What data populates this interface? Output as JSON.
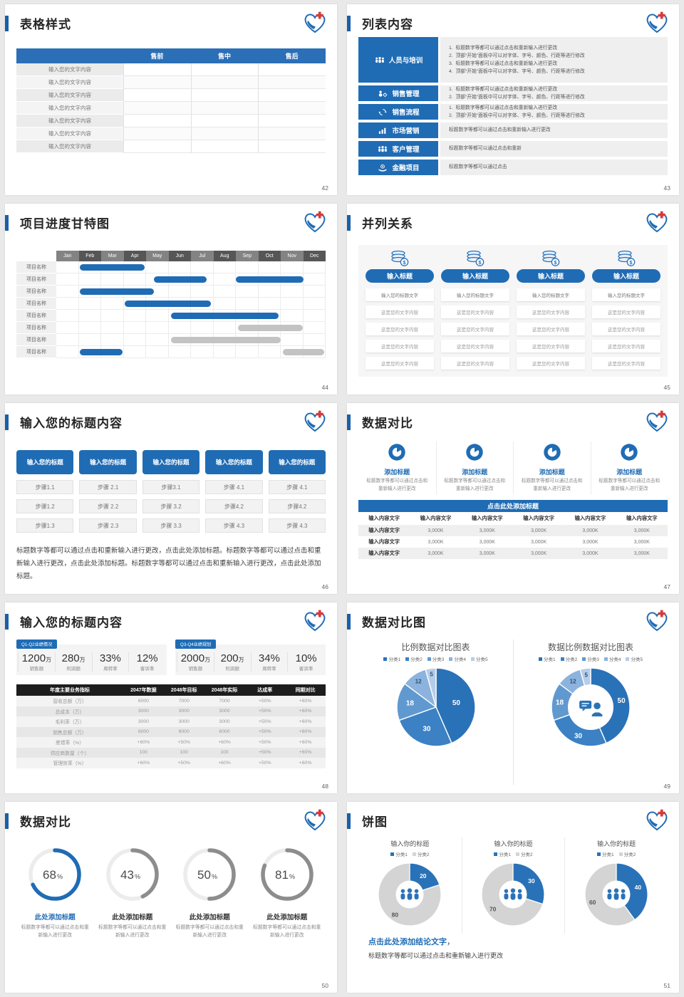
{
  "colors": {
    "primary": "#1f6cb5",
    "accent_bar": "#1a5fa8",
    "table_header_dark": "#1d1d1d",
    "gantt_bar_blue": "#1f6cb5",
    "gantt_bar_gray": "#c3c3c3",
    "ring_gray": "#8d8d8d",
    "donut_gray": "#d4d4d4",
    "pie_palette": [
      "#2a72b8",
      "#3b81c4",
      "#6099cf",
      "#8bb3dd",
      "#b5ccea"
    ]
  },
  "slides": {
    "s42": {
      "page": "42",
      "title": "表格样式",
      "table": {
        "headers": [
          "",
          "售前",
          "售中",
          "售后"
        ],
        "rows": [
          "输入您的文字内容",
          "输入您的文字内容",
          "输入您的文字内容",
          "输入您的文字内容",
          "输入您的文字内容",
          "输入您的文字内容",
          "输入您的文字内容"
        ]
      }
    },
    "s43": {
      "page": "43",
      "title": "列表内容",
      "rows": [
        {
          "label": "人员与培训",
          "icon": "people-training-icon",
          "numbered": true,
          "items": [
            "标题数字等都可以通过点击和重新输入进行更改",
            "顶部“开始”面板中可以对字体、字号、颜色、行距等进行修改",
            "标题数字等都可以通过点击和重新输入进行更改",
            "顶部“开始”面板中可以对字体、字号、颜色、行距等进行修改"
          ]
        },
        {
          "label": "销售管理",
          "icon": "sales-management-icon",
          "numbered": true,
          "items": [
            "标题数字等都可以通过点击和重新输入进行更改",
            "顶部“开始”面板中可以对字体、字号、颜色、行距等进行修改"
          ]
        },
        {
          "label": "销售流程",
          "icon": "sales-process-icon",
          "numbered": true,
          "items": [
            "标题数字等都可以通过点击和重新输入进行更改",
            "顶部“开始”面板中可以对字体、字号、颜色、行距等进行修改"
          ]
        },
        {
          "label": "市场营销",
          "icon": "marketing-icon",
          "numbered": false,
          "items": [
            "标题数字等都可以通过点击和重新输入进行更改"
          ]
        },
        {
          "label": "客户管理",
          "icon": "customer-management-icon",
          "numbered": false,
          "items": [
            "标题数字等都可以通过点击和重新"
          ]
        },
        {
          "label": "金融项目",
          "icon": "finance-project-icon",
          "numbered": false,
          "items": [
            "标题数字等都可以通过点击"
          ]
        }
      ]
    },
    "s44": {
      "page": "44",
      "title": "项目进度甘特图"
    },
    "s45": {
      "page": "45",
      "title": "并列关系",
      "columns": [
        {
          "title": "输入标题",
          "rows": [
            "输入您的标题文字",
            "这是您的文字内容",
            "这是您的文字内容",
            "这是您的文字内容",
            "这是您的文字内容"
          ]
        },
        {
          "title": "输入标题",
          "rows": [
            "输入您的标题文字",
            "这是您的文字内容",
            "这是您的文字内容",
            "这是您的文字内容",
            "这是您的文字内容"
          ]
        },
        {
          "title": "输入标题",
          "rows": [
            "输入您的标题文字",
            "这是您的文字内容",
            "这是您的文字内容",
            "这是您的文字内容",
            "这是您的文字内容"
          ]
        },
        {
          "title": "输入标题",
          "rows": [
            "输入您的标题文字",
            "这是您的文字内容",
            "这是您的文字内容",
            "这是您的文字内容",
            "这是您的文字内容"
          ]
        }
      ]
    },
    "s46": {
      "page": "46",
      "title": "输入您的标题内容",
      "columns": [
        {
          "header": "输入您的标题",
          "steps": [
            "步骤1.1",
            "步骤1.2",
            "步骤1.3"
          ]
        },
        {
          "header": "输入您的标题",
          "steps": [
            "步骤 2.1",
            "步骤 2.2",
            "步骤 2.3"
          ]
        },
        {
          "header": "输入您的标题",
          "steps": [
            "步骤3.1",
            "步骤 3.2",
            "步骤 3.3"
          ]
        },
        {
          "header": "输入您的标题",
          "steps": [
            "步骤 4.1",
            "步骤4.2",
            "步骤 4.3"
          ]
        },
        {
          "header": "输入您的标题",
          "steps": [
            "步骤 4.1",
            "步骤4.2",
            "步骤 4.3"
          ]
        }
      ],
      "paragraph": "标题数字等都可以通过点击和重新输入进行更改，点击此处添加标题。标题数字等都可以通过点击和重新输入进行更改，点击此处添加标题。标题数字等都可以通过点击和重新输入进行更改，点击此处添加标题。"
    },
    "s47": {
      "page": "47",
      "title": "数据对比",
      "features": [
        {
          "title": "添加标题",
          "caption": "标题数字等都可以通过点击和重新输入进行更改"
        },
        {
          "title": "添加标题",
          "caption": "标题数字等都可以通过点击和重新输入进行更改"
        },
        {
          "title": "添加标题",
          "caption": "标题数字等都可以通过点击和重新输入进行更改"
        },
        {
          "title": "添加标题",
          "caption": "标题数字等都可以通过点击和重新输入进行更改"
        }
      ],
      "band": "点击此处添加标题",
      "table": {
        "headers": [
          "输入内容文字",
          "输入内容文字",
          "输入内容文字",
          "输入内容文字",
          "输入内容文字",
          "输入内容文字"
        ],
        "rows": [
          [
            "输入内容文字",
            "3,000K",
            "3,000K",
            "3,000K",
            "3,000K",
            "3,000K"
          ],
          [
            "输入内容文字",
            "3,000K",
            "3,000K",
            "3,000K",
            "3,000K",
            "3,000K"
          ],
          [
            "输入内容文字",
            "3,000K",
            "3,000K",
            "3,000K",
            "3,000K",
            "3,000K"
          ]
        ]
      }
    },
    "s48": {
      "page": "48",
      "title": "输入您的标题内容",
      "panels": [
        {
          "tag": "Q1-Q2业绩情况",
          "stats": [
            {
              "value": "1200",
              "unit": "万",
              "label": "销售额"
            },
            {
              "value": "280",
              "unit": "万",
              "label": "利润额"
            },
            {
              "value": "33%",
              "unit": "",
              "label": "周转率"
            },
            {
              "value": "12%",
              "unit": "",
              "label": "客诉率"
            }
          ]
        },
        {
          "tag": "Q3-Q4业绩规划",
          "stats": [
            {
              "value": "2000",
              "unit": "万",
              "label": "销售额"
            },
            {
              "value": "200",
              "unit": "万",
              "label": "利润额"
            },
            {
              "value": "34%",
              "unit": "",
              "label": "周转率"
            },
            {
              "value": "10%",
              "unit": "",
              "label": "客诉率"
            }
          ]
        }
      ],
      "table": {
        "headers": [
          "年度主要业务指标",
          "2047年数据",
          "2048年目标",
          "2048年实际",
          "达成率",
          "同期对比"
        ],
        "rows": [
          [
            "营收总额（万）",
            "6000",
            "7000",
            "7000",
            "+50%",
            "+60%"
          ],
          [
            "总成本（万）",
            "3000",
            "3000",
            "3000",
            "+50%",
            "+60%"
          ],
          [
            "毛利率（万）",
            "3000",
            "3000",
            "3000",
            "+50%",
            "+60%"
          ],
          [
            "销售总额（万）",
            "6000",
            "6000",
            "6000",
            "+50%",
            "+60%"
          ],
          [
            "差错率（%）",
            "+60%",
            "+50%",
            "+60%",
            "+50%",
            "+60%"
          ],
          [
            "供应商数量（个）",
            "100",
            "100",
            "100",
            "+50%",
            "+60%"
          ],
          [
            "管理效率（%）",
            "+60%",
            "+50%",
            "+60%",
            "+50%",
            "+60%"
          ]
        ]
      }
    },
    "s49": {
      "page": "49",
      "title": "数据对比图"
    },
    "s50": {
      "page": "50",
      "title": "数据对比",
      "caption": "标题数字等都可以通过点击和重新输入进行更改",
      "rings": [
        {
          "title": "此处添加标题"
        },
        {
          "title": "此处添加标题"
        },
        {
          "title": "此处添加标题"
        },
        {
          "title": "此处添加标题"
        }
      ]
    },
    "s51": {
      "page": "51",
      "title": "饼图",
      "legend": [
        "分类1",
        "分类2"
      ],
      "conclusion_title": "点击此处添加结论文字",
      "conclusion_sep": "，",
      "conclusion_text": "标题数字等都可以通过点击和重新输入进行更改"
    }
  },
  "chart_data": [
    {
      "type": "gantt",
      "title": "项目进度甘特图",
      "x_categories": [
        "Jan",
        "Feb",
        "Mar",
        "Apr",
        "May",
        "Jun",
        "Jul",
        "Aug",
        "Sep",
        "Oct",
        "Nov",
        "Dec"
      ],
      "rows": [
        {
          "label": "项目名称",
          "bars": [
            {
              "start": 1.05,
              "end": 3.95,
              "color": "#1f6cb5"
            }
          ]
        },
        {
          "label": "项目名称",
          "bars": [
            {
              "start": 4.35,
              "end": 6.7,
              "color": "#1f6cb5"
            },
            {
              "start": 8.0,
              "end": 11.0,
              "color": "#1f6cb5"
            }
          ]
        },
        {
          "label": "项目名称",
          "bars": [
            {
              "start": 1.05,
              "end": 4.35,
              "color": "#1f6cb5"
            }
          ]
        },
        {
          "label": "项目名称",
          "bars": [
            {
              "start": 3.05,
              "end": 6.9,
              "color": "#1f6cb5"
            }
          ]
        },
        {
          "label": "项目名称",
          "bars": [
            {
              "start": 5.1,
              "end": 9.9,
              "color": "#1f6cb5"
            }
          ]
        },
        {
          "label": "项目名称",
          "bars": [
            {
              "start": 8.1,
              "end": 11.0,
              "color": "#c3c3c3"
            }
          ]
        },
        {
          "label": "项目名称",
          "bars": [
            {
              "start": 5.1,
              "end": 10.0,
              "color": "#c3c3c3"
            }
          ]
        },
        {
          "label": "项目名称",
          "bars": [
            {
              "start": 1.05,
              "end": 2.95,
              "color": "#1f6cb5"
            },
            {
              "start": 10.1,
              "end": 11.95,
              "color": "#c3c3c3"
            }
          ]
        }
      ]
    },
    {
      "type": "pie",
      "title": "比例数据对比图表",
      "labels": [
        "分类1",
        "分类2",
        "分类3",
        "分类4",
        "分类5"
      ],
      "values": [
        50,
        30,
        18,
        12,
        5
      ],
      "legend_position": "top"
    },
    {
      "type": "pie",
      "subtype": "donut",
      "title": "数据比例数据对比图表",
      "labels": [
        "分类1",
        "分类2",
        "分类3",
        "分类4",
        "分类5"
      ],
      "values": [
        50,
        30,
        18,
        12,
        5
      ],
      "legend_position": "top"
    },
    {
      "type": "progress-rings",
      "title": "数据对比",
      "values": [
        68,
        43,
        50,
        81
      ],
      "unit": "%",
      "colors": [
        "#1f6cb5",
        "#8d8d8d",
        "#8d8d8d",
        "#8d8d8d"
      ]
    },
    {
      "type": "pie",
      "subtype": "donut",
      "title": "输入你的标题",
      "labels": [
        "分类1",
        "分类2"
      ],
      "values": [
        20,
        80
      ]
    },
    {
      "type": "pie",
      "subtype": "donut",
      "title": "输入你的标题",
      "labels": [
        "分类1",
        "分类2"
      ],
      "values": [
        30,
        70
      ]
    },
    {
      "type": "pie",
      "subtype": "donut",
      "title": "输入你的标题",
      "labels": [
        "分类1",
        "分类2"
      ],
      "values": [
        40,
        60
      ]
    }
  ]
}
